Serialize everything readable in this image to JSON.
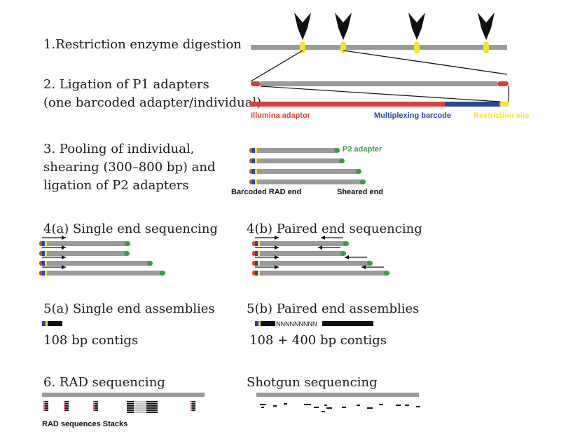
{
  "steps": {
    "s1": "1.Restriction enzyme digestion",
    "s2a": "2. Ligation of P1 adapters",
    "s2b": "(one barcoded adapter/individual)",
    "s3a": "3. Pooling of individual,",
    "s3b": "shearing (300–800 bp) and",
    "s3c": "ligation of P2 adapters",
    "s4a": "4(a) Single end sequencing",
    "s4b": "4(b) Paired end sequencing",
    "s5a": "5(a) Single end assemblies",
    "s5b": "5(b) Paired end assemblies",
    "s5a_sub": "108 bp contigs",
    "s5b_sub": "108 + 400 bp contigs",
    "s6": "6. RAD sequencing",
    "shotgun": "Shotgun sequencing"
  },
  "labels": {
    "illumina": "Illumina adaptor",
    "barcode": "Multiplexing barcode",
    "restriction": "Restriction site",
    "p2": "P2 adapter",
    "barcoded_end": "Barcoded RAD end",
    "sheared_end": "Sheared end",
    "rad_stacks": "RAD sequences Stacks",
    "nnn": "NNNNNNNNN"
  },
  "colors": {
    "grey": "#9a9a9a",
    "red": "#d8413a",
    "blue": "#27479b",
    "yellow": "#f5e33a",
    "green": "#3e9a48",
    "black": "#111111"
  }
}
